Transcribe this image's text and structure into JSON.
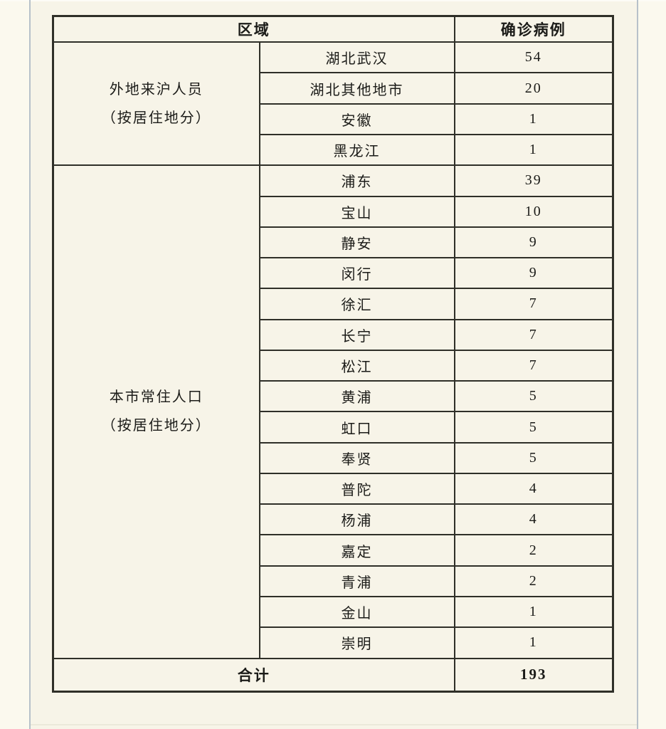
{
  "colors": {
    "page_background": "#f7f4e8",
    "margin_background": "#fbf9ee",
    "frame_line": "#b7c1c9",
    "table_border": "#2f2f28",
    "text": "#1b1b18"
  },
  "chart_data": {
    "type": "table",
    "columns": [
      "区域",
      "确诊病例"
    ],
    "groups": [
      {
        "category": "外地来沪人员（按居住地分）",
        "category_lines": [
          "外地来沪人员",
          "（按居住地分）"
        ],
        "rows": [
          {
            "region": "湖北武汉",
            "cases": 54
          },
          {
            "region": "湖北其他地市",
            "cases": 20
          },
          {
            "region": "安徽",
            "cases": 1
          },
          {
            "region": "黑龙江",
            "cases": 1
          }
        ]
      },
      {
        "category": "本市常住人口（按居住地分）",
        "category_lines": [
          "本市常住人口",
          "（按居住地分）"
        ],
        "rows": [
          {
            "region": "浦东",
            "cases": 39
          },
          {
            "region": "宝山",
            "cases": 10
          },
          {
            "region": "静安",
            "cases": 9
          },
          {
            "region": "闵行",
            "cases": 9
          },
          {
            "region": "徐汇",
            "cases": 7
          },
          {
            "region": "长宁",
            "cases": 7
          },
          {
            "region": "松江",
            "cases": 7
          },
          {
            "region": "黄浦",
            "cases": 5
          },
          {
            "region": "虹口",
            "cases": 5
          },
          {
            "region": "奉贤",
            "cases": 5
          },
          {
            "region": "普陀",
            "cases": 4
          },
          {
            "region": "杨浦",
            "cases": 4
          },
          {
            "region": "嘉定",
            "cases": 2
          },
          {
            "region": "青浦",
            "cases": 2
          },
          {
            "region": "金山",
            "cases": 1
          },
          {
            "region": "崇明",
            "cases": 1
          }
        ]
      }
    ],
    "total": {
      "label": "合计",
      "value": 193
    }
  }
}
